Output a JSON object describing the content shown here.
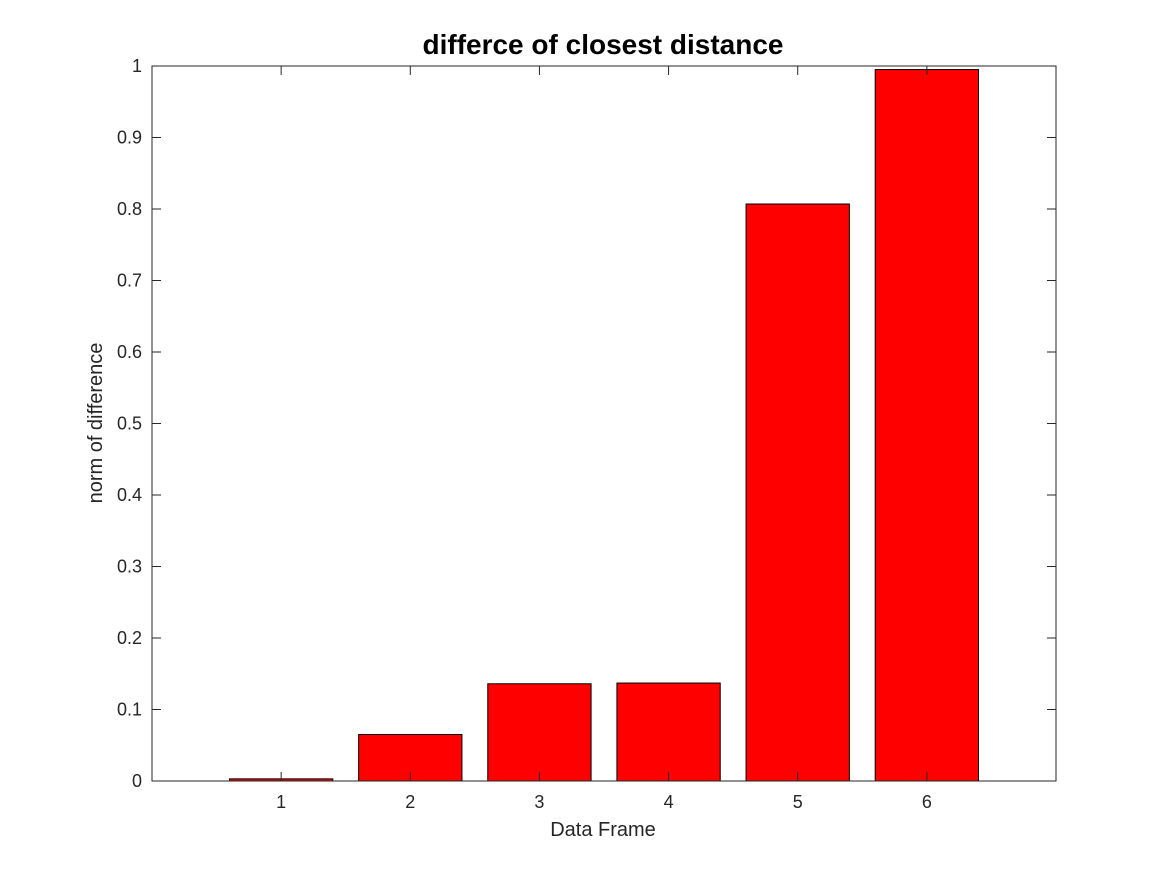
{
  "chart_data": {
    "type": "bar",
    "title": "differce of closest distance",
    "xlabel": "Data Frame",
    "ylabel": "norm of difference",
    "categories": [
      "1",
      "2",
      "3",
      "4",
      "5",
      "6"
    ],
    "values": [
      0.003,
      0.065,
      0.136,
      0.137,
      0.807,
      0.995
    ],
    "xlim": [
      0,
      7
    ],
    "ylim": [
      0,
      1
    ],
    "yticks": [
      "0",
      "0.1",
      "0.2",
      "0.3",
      "0.4",
      "0.5",
      "0.6",
      "0.7",
      "0.8",
      "0.9",
      "1"
    ],
    "grid": false,
    "legend": "none",
    "bar_color": "#ff0000",
    "bar_edge_color": "#000000"
  }
}
